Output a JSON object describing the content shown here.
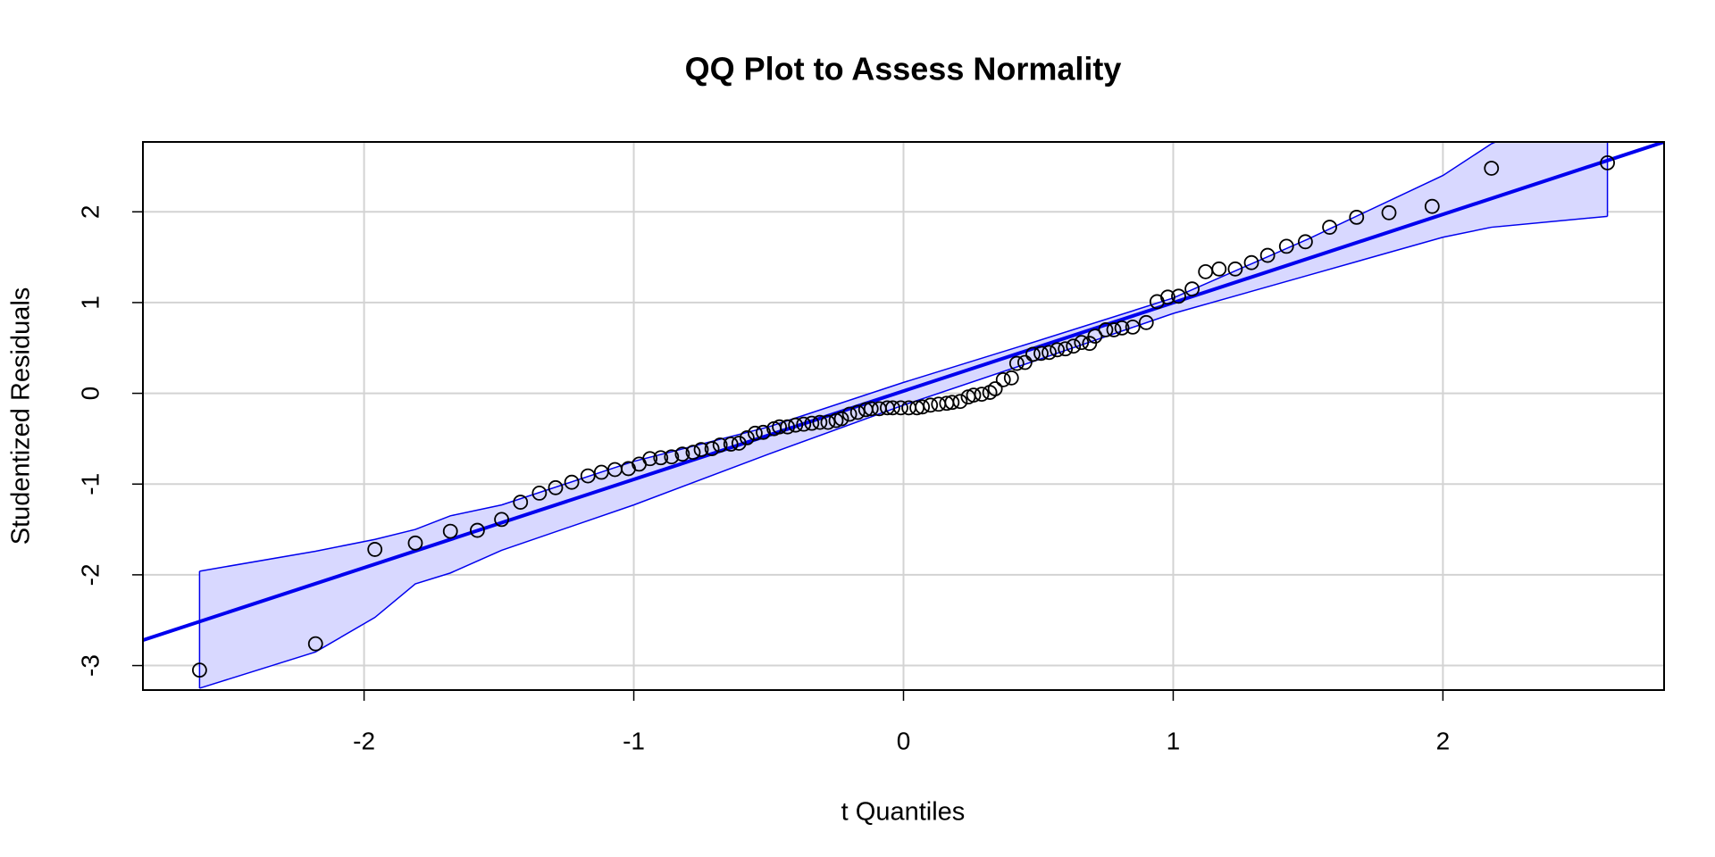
{
  "chart_data": {
    "type": "qq",
    "title": "QQ Plot to Assess Normality",
    "x_label": "t Quantiles",
    "y_label": "Studentized Residuals",
    "xlim": [
      -2.82,
      2.82
    ],
    "ylim": [
      -3.27,
      2.77
    ],
    "xticks": [
      -2,
      -1,
      0,
      1,
      2
    ],
    "yticks": [
      -3,
      -2,
      -1,
      0,
      1,
      2
    ],
    "grid": true,
    "point_color": "#000000",
    "line_color": "#0000ee",
    "band_color": "#d8d8ff",
    "x": [
      -2.61,
      -2.18,
      -1.96,
      -1.81,
      -1.68,
      -1.58,
      -1.49,
      -1.42,
      -1.35,
      -1.29,
      -1.23,
      -1.17,
      -1.12,
      -1.07,
      -1.02,
      -0.98,
      -0.94,
      -0.9,
      -0.86,
      -0.82,
      -0.78,
      -0.75,
      -0.71,
      -0.68,
      -0.64,
      -0.61,
      -0.58,
      -0.55,
      -0.52,
      -0.48,
      -0.46,
      -0.43,
      -0.4,
      -0.37,
      -0.34,
      -0.31,
      -0.28,
      -0.25,
      -0.23,
      -0.2,
      -0.17,
      -0.14,
      -0.12,
      -0.09,
      -0.06,
      -0.04,
      -0.01,
      0.02,
      0.05,
      0.07,
      0.1,
      0.13,
      0.16,
      0.18,
      0.21,
      0.24,
      0.26,
      0.29,
      0.32,
      0.34,
      0.37,
      0.4,
      0.42,
      0.45,
      0.48,
      0.51,
      0.54,
      0.57,
      0.6,
      0.63,
      0.66,
      0.69,
      0.71,
      0.75,
      0.78,
      0.81,
      0.85,
      0.9,
      0.94,
      0.98,
      1.02,
      1.07,
      1.12,
      1.17,
      1.23,
      1.29,
      1.35,
      1.42,
      1.49,
      1.58,
      1.68,
      1.8,
      1.96,
      2.18,
      2.61
    ],
    "y": [
      -3.05,
      -2.76,
      -1.72,
      -1.65,
      -1.52,
      -1.51,
      -1.39,
      -1.2,
      -1.1,
      -1.04,
      -0.98,
      -0.91,
      -0.87,
      -0.84,
      -0.83,
      -0.78,
      -0.72,
      -0.71,
      -0.7,
      -0.67,
      -0.65,
      -0.62,
      -0.61,
      -0.57,
      -0.56,
      -0.55,
      -0.49,
      -0.44,
      -0.43,
      -0.39,
      -0.37,
      -0.37,
      -0.35,
      -0.34,
      -0.33,
      -0.32,
      -0.32,
      -0.3,
      -0.28,
      -0.23,
      -0.21,
      -0.18,
      -0.17,
      -0.17,
      -0.16,
      -0.16,
      -0.16,
      -0.16,
      -0.16,
      -0.15,
      -0.13,
      -0.12,
      -0.11,
      -0.1,
      -0.09,
      -0.04,
      -0.02,
      -0.01,
      0.01,
      0.05,
      0.15,
      0.17,
      0.33,
      0.34,
      0.43,
      0.44,
      0.45,
      0.48,
      0.49,
      0.52,
      0.56,
      0.55,
      0.63,
      0.7,
      0.7,
      0.72,
      0.73,
      0.78,
      1.01,
      1.06,
      1.07,
      1.15,
      1.34,
      1.37,
      1.37,
      1.44,
      1.52,
      1.62,
      1.67,
      1.83,
      1.94,
      1.99,
      2.06,
      2.48,
      2.54
    ],
    "reference_line": {
      "x": [
        -2.82,
        2.82
      ],
      "y": [
        -2.72,
        2.77
      ]
    },
    "envelope": {
      "x": [
        -2.61,
        -2.18,
        -1.96,
        -1.81,
        -1.68,
        -1.49,
        -1.0,
        -0.5,
        0,
        0.5,
        1.0,
        1.5,
        2.0,
        2.18,
        2.61
      ],
      "upper": [
        -1.96,
        -1.74,
        -1.61,
        -1.5,
        -1.35,
        -1.23,
        -0.75,
        -0.37,
        0.12,
        0.58,
        1.05,
        1.7,
        2.4,
        2.75,
        3.3
      ],
      "lower": [
        -3.25,
        -2.85,
        -2.47,
        -2.1,
        -1.98,
        -1.73,
        -1.23,
        -0.67,
        -0.13,
        0.37,
        0.88,
        1.3,
        1.72,
        1.83,
        1.95
      ]
    }
  }
}
